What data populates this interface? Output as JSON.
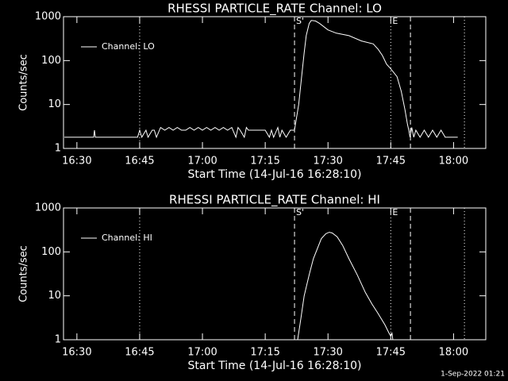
{
  "chart_data": [
    {
      "type": "line",
      "title": "RHESSI PARTICLE_RATE Channel: LO",
      "xlabel": "Start Time (14-Jul-16 16:28:10)",
      "ylabel": "Counts/sec",
      "log_y": true,
      "xlim": [
        26.8,
        127.7
      ],
      "ylim": [
        1,
        1000
      ],
      "yticks": [
        1,
        10,
        100,
        1000
      ],
      "xticks": [
        {
          "value": 30,
          "label": "16:30"
        },
        {
          "value": 45,
          "label": "16:45"
        },
        {
          "value": 60,
          "label": "17:00"
        },
        {
          "value": 75,
          "label": "17:15"
        },
        {
          "value": 90,
          "label": "17:30"
        },
        {
          "value": 105,
          "label": "17:45"
        },
        {
          "value": 120,
          "label": "18:00"
        }
      ],
      "legend": "upper left",
      "markers": [
        {
          "x": 45,
          "style": "dotted"
        },
        {
          "x": 82,
          "style": "dashed",
          "label": "S'"
        },
        {
          "x": 105,
          "style": "dotted",
          "label": "E"
        },
        {
          "x": 109.7,
          "style": "dashed"
        },
        {
          "x": 122.6,
          "style": "dotted"
        }
      ],
      "series": [
        {
          "name": "Channel: LO",
          "color": "#ffffff",
          "x": [
            27,
            34,
            34.2,
            34.4,
            44.5,
            45,
            45.5,
            46.5,
            47,
            48,
            48.5,
            49,
            50,
            51,
            52,
            53,
            54,
            55,
            56,
            57,
            58,
            59,
            60,
            61,
            62,
            63,
            64,
            65,
            66,
            67,
            68,
            68.5,
            69,
            70,
            70.5,
            71,
            72,
            75,
            76,
            76.5,
            77,
            78,
            78.5,
            79,
            80,
            81,
            82,
            83,
            83.7,
            84.3,
            84.8,
            85.5,
            86,
            87,
            88,
            90,
            92,
            95,
            98,
            100.8,
            102,
            103,
            104,
            105,
            106.5,
            107.5,
            108.4,
            109,
            109.3,
            109.6,
            110,
            110.5,
            111,
            112,
            113,
            114,
            115,
            116,
            117,
            118,
            121
          ],
          "values": [
            1.8,
            1.8,
            2.6,
            1.8,
            1.8,
            2.6,
            1.8,
            2.6,
            1.8,
            2.6,
            2.6,
            1.8,
            3,
            2.6,
            3,
            2.6,
            3,
            2.6,
            2.6,
            3,
            2.6,
            3,
            2.6,
            3,
            2.6,
            3,
            2.6,
            3,
            2.6,
            3,
            1.8,
            3,
            2.6,
            1.8,
            3,
            2.6,
            2.6,
            2.6,
            1.8,
            2.6,
            1.8,
            3,
            1.8,
            2.6,
            1.8,
            2.6,
            2.6,
            10,
            43,
            150,
            370,
            700,
            820,
            800,
            700,
            500,
            420,
            370,
            280,
            240,
            180,
            130,
            83,
            65,
            43,
            20,
            7.6,
            3.5,
            2.6,
            1.8,
            3,
            1.8,
            2.6,
            1.8,
            2.6,
            1.8,
            2.6,
            1.8,
            2.6,
            1.8,
            1.8
          ]
        }
      ]
    },
    {
      "type": "line",
      "title": "RHESSI PARTICLE_RATE Channel: HI",
      "xlabel": "Start Time (14-Jul-16 16:28:10)",
      "ylabel": "Counts/sec",
      "log_y": true,
      "xlim": [
        26.8,
        127.7
      ],
      "ylim": [
        1,
        1000
      ],
      "yticks": [
        1,
        10,
        100,
        1000
      ],
      "xticks": [
        {
          "value": 30,
          "label": "16:30"
        },
        {
          "value": 45,
          "label": "16:45"
        },
        {
          "value": 60,
          "label": "17:00"
        },
        {
          "value": 75,
          "label": "17:15"
        },
        {
          "value": 90,
          "label": "17:30"
        },
        {
          "value": 105,
          "label": "17:45"
        },
        {
          "value": 120,
          "label": "18:00"
        }
      ],
      "legend": "upper left",
      "markers": [
        {
          "x": 45,
          "style": "dotted"
        },
        {
          "x": 82,
          "style": "dashed",
          "label": "S'"
        },
        {
          "x": 105,
          "style": "dotted",
          "label": "E"
        },
        {
          "x": 109.7,
          "style": "dashed"
        },
        {
          "x": 122.6,
          "style": "dotted"
        }
      ],
      "series": [
        {
          "name": "Channel: HI",
          "color": "#ffffff",
          "x": [
            82.75,
            83.5,
            84.3,
            85.5,
            86.5,
            88.4,
            89.5,
            90.3,
            91,
            92.2,
            93.5,
            95,
            97,
            98.9,
            100.5,
            101.8,
            103.6,
            104.6,
            105,
            105.3,
            105.5
          ],
          "values": [
            1,
            3,
            10,
            30,
            70,
            200,
            260,
            280,
            270,
            220,
            140,
            70,
            30,
            12,
            6.5,
            4.2,
            2.2,
            1.4,
            1.2,
            1.4,
            1
          ]
        }
      ]
    }
  ],
  "footer": "1-Sep-2022 01:21"
}
